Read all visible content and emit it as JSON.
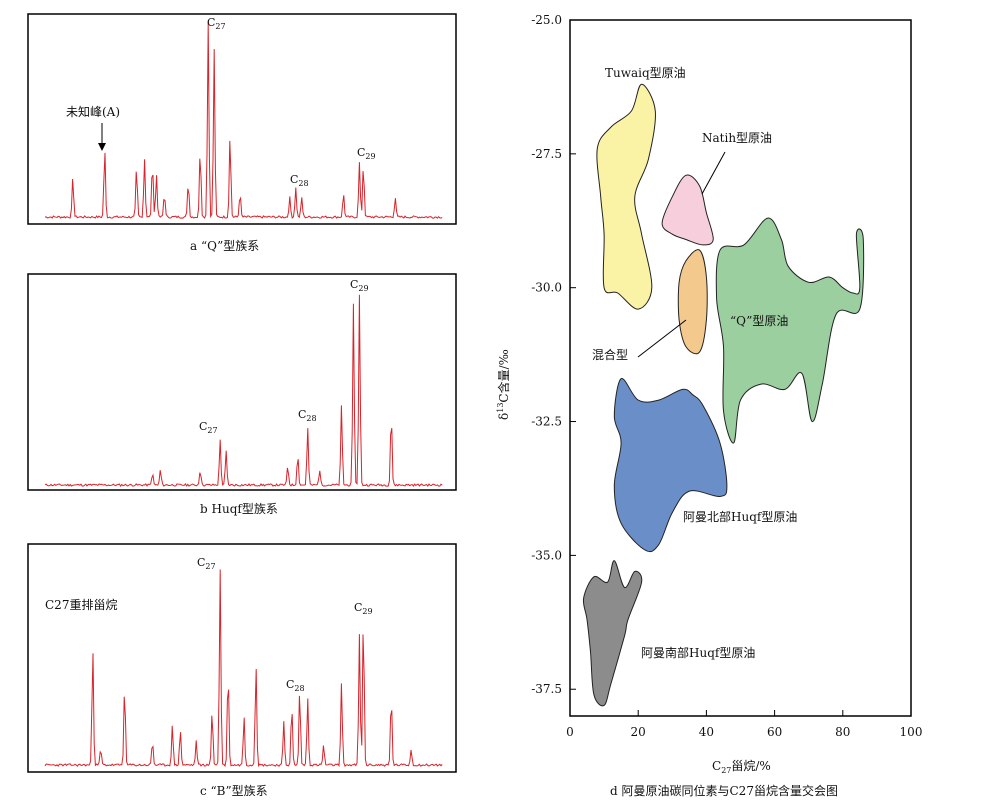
{
  "chart_data": [
    {
      "type": "line",
      "panel": "a",
      "caption": "a “Q”型族系",
      "series": [
        {
          "name": "chromatogram",
          "color": "#d8232a"
        }
      ],
      "peaks": [
        {
          "label": "未知峰(A)",
          "rt": 0.15,
          "height": 0.35
        },
        {
          "label": "C27",
          "rt": 0.41,
          "height": 1.0
        },
        {
          "label": "C28",
          "rt": 0.63,
          "height": 0.15
        },
        {
          "label": "C29",
          "rt": 0.8,
          "height": 0.27
        }
      ]
    },
    {
      "type": "line",
      "panel": "b",
      "caption": "b Huqf型族系",
      "series": [
        {
          "name": "chromatogram",
          "color": "#d8232a"
        }
      ],
      "peaks": [
        {
          "label": "C27",
          "rt": 0.44,
          "height": 0.24
        },
        {
          "label": "C28",
          "rt": 0.66,
          "height": 0.3
        },
        {
          "label": "C29",
          "rt": 0.79,
          "height": 1.0
        }
      ]
    },
    {
      "type": "line",
      "panel": "c",
      "caption": "c “B”型族系",
      "series": [
        {
          "name": "chromatogram",
          "color": "#d8232a"
        }
      ],
      "peaks": [
        {
          "label": "C27重排甾烷",
          "rt": 0.12,
          "height": 0.6
        },
        {
          "label": "C27",
          "rt": 0.44,
          "height": 1.0
        },
        {
          "label": "C28",
          "rt": 0.64,
          "height": 0.38
        },
        {
          "label": "C29",
          "rt": 0.8,
          "height": 0.75
        }
      ]
    },
    {
      "type": "scatter",
      "panel": "d",
      "caption": "d 阿曼原油碳同位素与C27甾烷含量交会图",
      "xlabel": "C27甾烷/%",
      "ylabel": "δ13C含量/‰",
      "xlim": [
        0,
        100
      ],
      "ylim": [
        -38.0,
        -25.0
      ],
      "xticks": [
        "0",
        "20",
        "40",
        "60",
        "80",
        "100"
      ],
      "yticks": [
        "-25.0",
        "-27.5",
        "-30.0",
        "-32.5",
        "-35.0",
        "-37.5"
      ],
      "regions": [
        {
          "name": "Tuwaiq型原油",
          "color": "#faf3a6",
          "points": [
            [
              21,
              -26.2
            ],
            [
              25,
              -26.7
            ],
            [
              23,
              -27.6
            ],
            [
              19,
              -28.3
            ],
            [
              21,
              -29.0
            ],
            [
              24,
              -30.0
            ],
            [
              20,
              -30.4
            ],
            [
              14,
              -30.1
            ],
            [
              10,
              -30.0
            ],
            [
              10,
              -29.0
            ],
            [
              9,
              -28.3
            ],
            [
              8,
              -27.4
            ],
            [
              12,
              -27.0
            ],
            [
              18,
              -26.7
            ]
          ]
        },
        {
          "name": "Natih型原油",
          "color": "#f7cfdc",
          "points": [
            [
              34,
              -27.9
            ],
            [
              38,
              -28.1
            ],
            [
              40,
              -28.6
            ],
            [
              42,
              -29.1
            ],
            [
              39,
              -29.2
            ],
            [
              34,
              -29.1
            ],
            [
              30,
              -29.0
            ],
            [
              27,
              -28.8
            ],
            [
              30,
              -28.3
            ]
          ]
        },
        {
          "name": "混合型",
          "color": "#f3c98d",
          "points": [
            [
              38,
              -29.3
            ],
            [
              40,
              -29.8
            ],
            [
              40,
              -30.6
            ],
            [
              38,
              -31.2
            ],
            [
              34,
              -31.1
            ],
            [
              32,
              -30.6
            ],
            [
              32,
              -29.9
            ],
            [
              34,
              -29.5
            ]
          ]
        },
        {
          "name": "“Q”型原油",
          "color": "#9ccfa0",
          "points": [
            [
              58,
              -28.7
            ],
            [
              62,
              -29.1
            ],
            [
              64,
              -29.6
            ],
            [
              70,
              -29.9
            ],
            [
              76,
              -29.8
            ],
            [
              80,
              -30.0
            ],
            [
              83,
              -30.1
            ],
            [
              85,
              -30.0
            ],
            [
              84,
              -29.0
            ],
            [
              86,
              -29.1
            ],
            [
              85,
              -30.4
            ],
            [
              78,
              -30.5
            ],
            [
              74,
              -31.8
            ],
            [
              71,
              -32.5
            ],
            [
              68,
              -31.6
            ],
            [
              63,
              -31.9
            ],
            [
              56,
              -31.8
            ],
            [
              50,
              -32.1
            ],
            [
              48,
              -32.9
            ],
            [
              45,
              -32.3
            ],
            [
              45,
              -31.1
            ],
            [
              43,
              -30.2
            ],
            [
              44,
              -29.3
            ],
            [
              51,
              -29.2
            ]
          ]
        },
        {
          "name": "阿曼北部Huqf型原油",
          "color": "#6a8fc8",
          "points": [
            [
              15,
              -31.7
            ],
            [
              20,
              -32.1
            ],
            [
              26,
              -32.1
            ],
            [
              33,
              -31.9
            ],
            [
              36,
              -32.0
            ],
            [
              39,
              -32.2
            ],
            [
              44,
              -32.9
            ],
            [
              46,
              -33.7
            ],
            [
              44,
              -33.9
            ],
            [
              35,
              -33.8
            ],
            [
              30,
              -34.2
            ],
            [
              26,
              -34.8
            ],
            [
              22,
              -34.9
            ],
            [
              15,
              -34.4
            ],
            [
              13,
              -33.7
            ],
            [
              15,
              -32.9
            ],
            [
              13,
              -32.4
            ]
          ]
        },
        {
          "name": "阿曼南部Huqf型原油",
          "color": "#8c8c8c",
          "points": [
            [
              13,
              -35.1
            ],
            [
              16,
              -35.6
            ],
            [
              19,
              -35.3
            ],
            [
              21,
              -35.5
            ],
            [
              17,
              -36.2
            ],
            [
              16,
              -36.5
            ],
            [
              12,
              -37.4
            ],
            [
              10,
              -37.8
            ],
            [
              7,
              -37.6
            ],
            [
              6,
              -36.8
            ],
            [
              5,
              -36.2
            ],
            [
              4,
              -35.8
            ],
            [
              7,
              -35.4
            ],
            [
              11,
              -35.5
            ]
          ]
        }
      ],
      "labels": {
        "tuwaiq": "Tuwaiq型原油",
        "natih": "Natih型原油",
        "mixed": "混合型",
        "q": "“Q”型原油",
        "north": "阿曼北部Huqf型原油",
        "south": "阿曼南部Huqf型原油"
      }
    }
  ],
  "labels": {
    "a_unknown": "未知峰(A)",
    "c_rearranged": "C27重排甾烷",
    "c_prefix": "C"
  },
  "colors": {
    "trace": "#d8232a",
    "frame": "#000000"
  }
}
